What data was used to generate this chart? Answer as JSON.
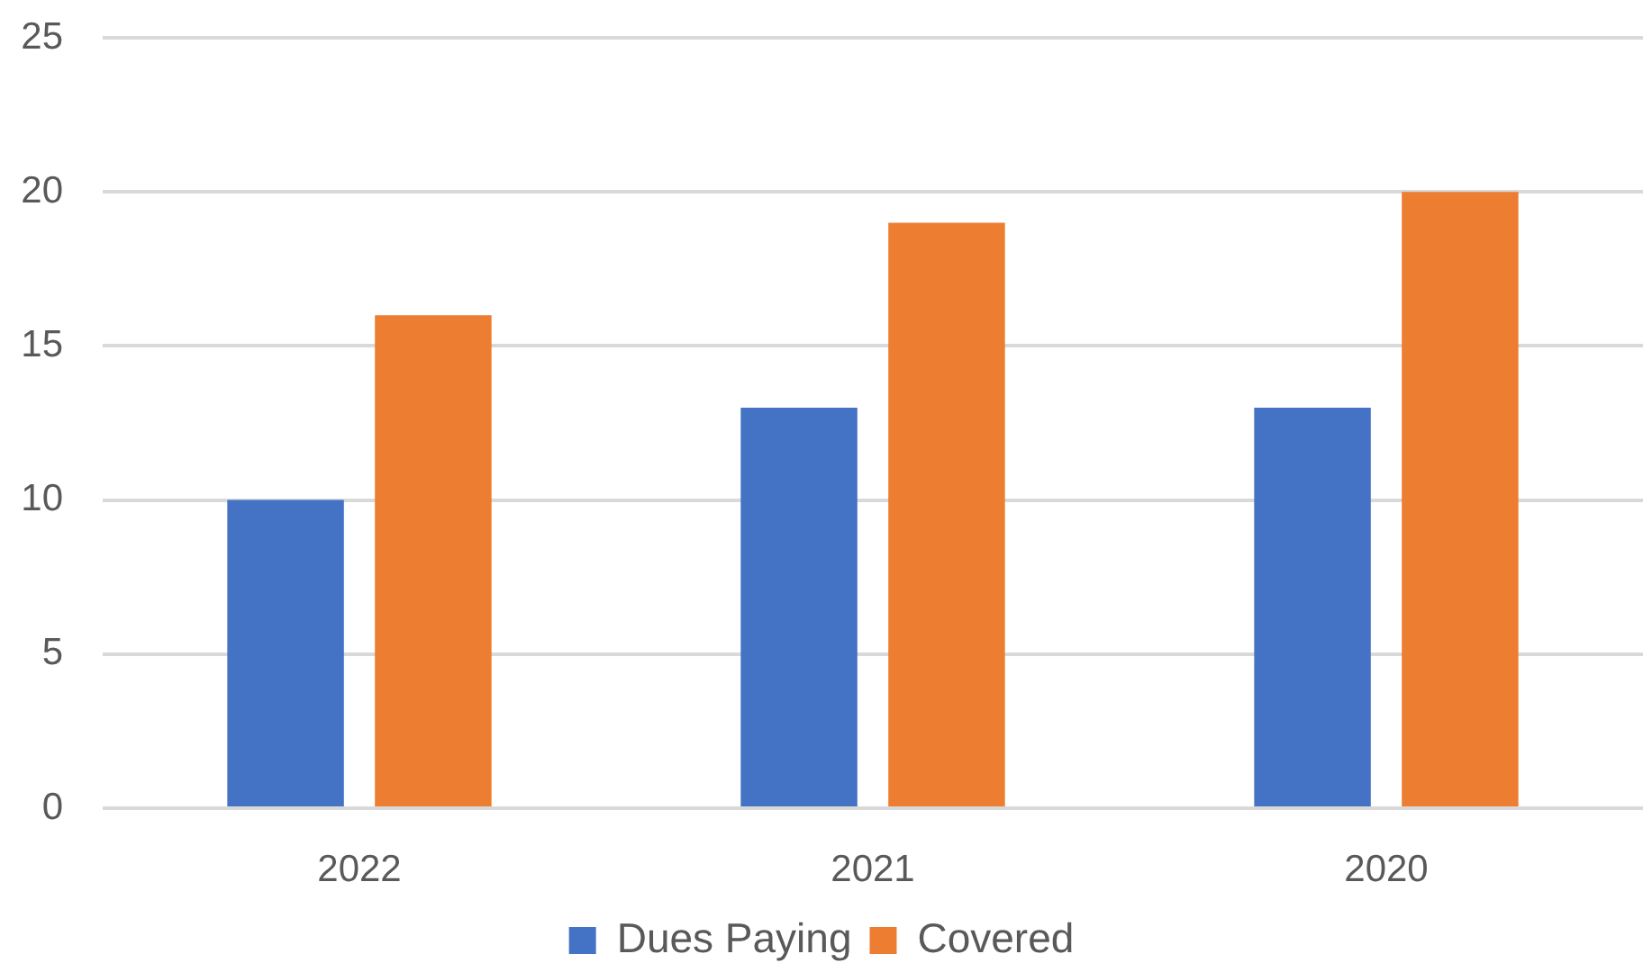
{
  "chart_data": {
    "type": "bar",
    "categories": [
      "2022",
      "2021",
      "2020"
    ],
    "series": [
      {
        "name": "Dues Paying",
        "color": "#4472c4",
        "values": [
          10,
          13,
          13
        ]
      },
      {
        "name": "Covered",
        "color": "#ed7d31",
        "values": [
          16,
          19,
          20
        ]
      }
    ],
    "ylim": [
      0,
      25
    ],
    "yticks": [
      0,
      5,
      10,
      15,
      20,
      25
    ],
    "grid": "y",
    "legend": "bottom"
  }
}
